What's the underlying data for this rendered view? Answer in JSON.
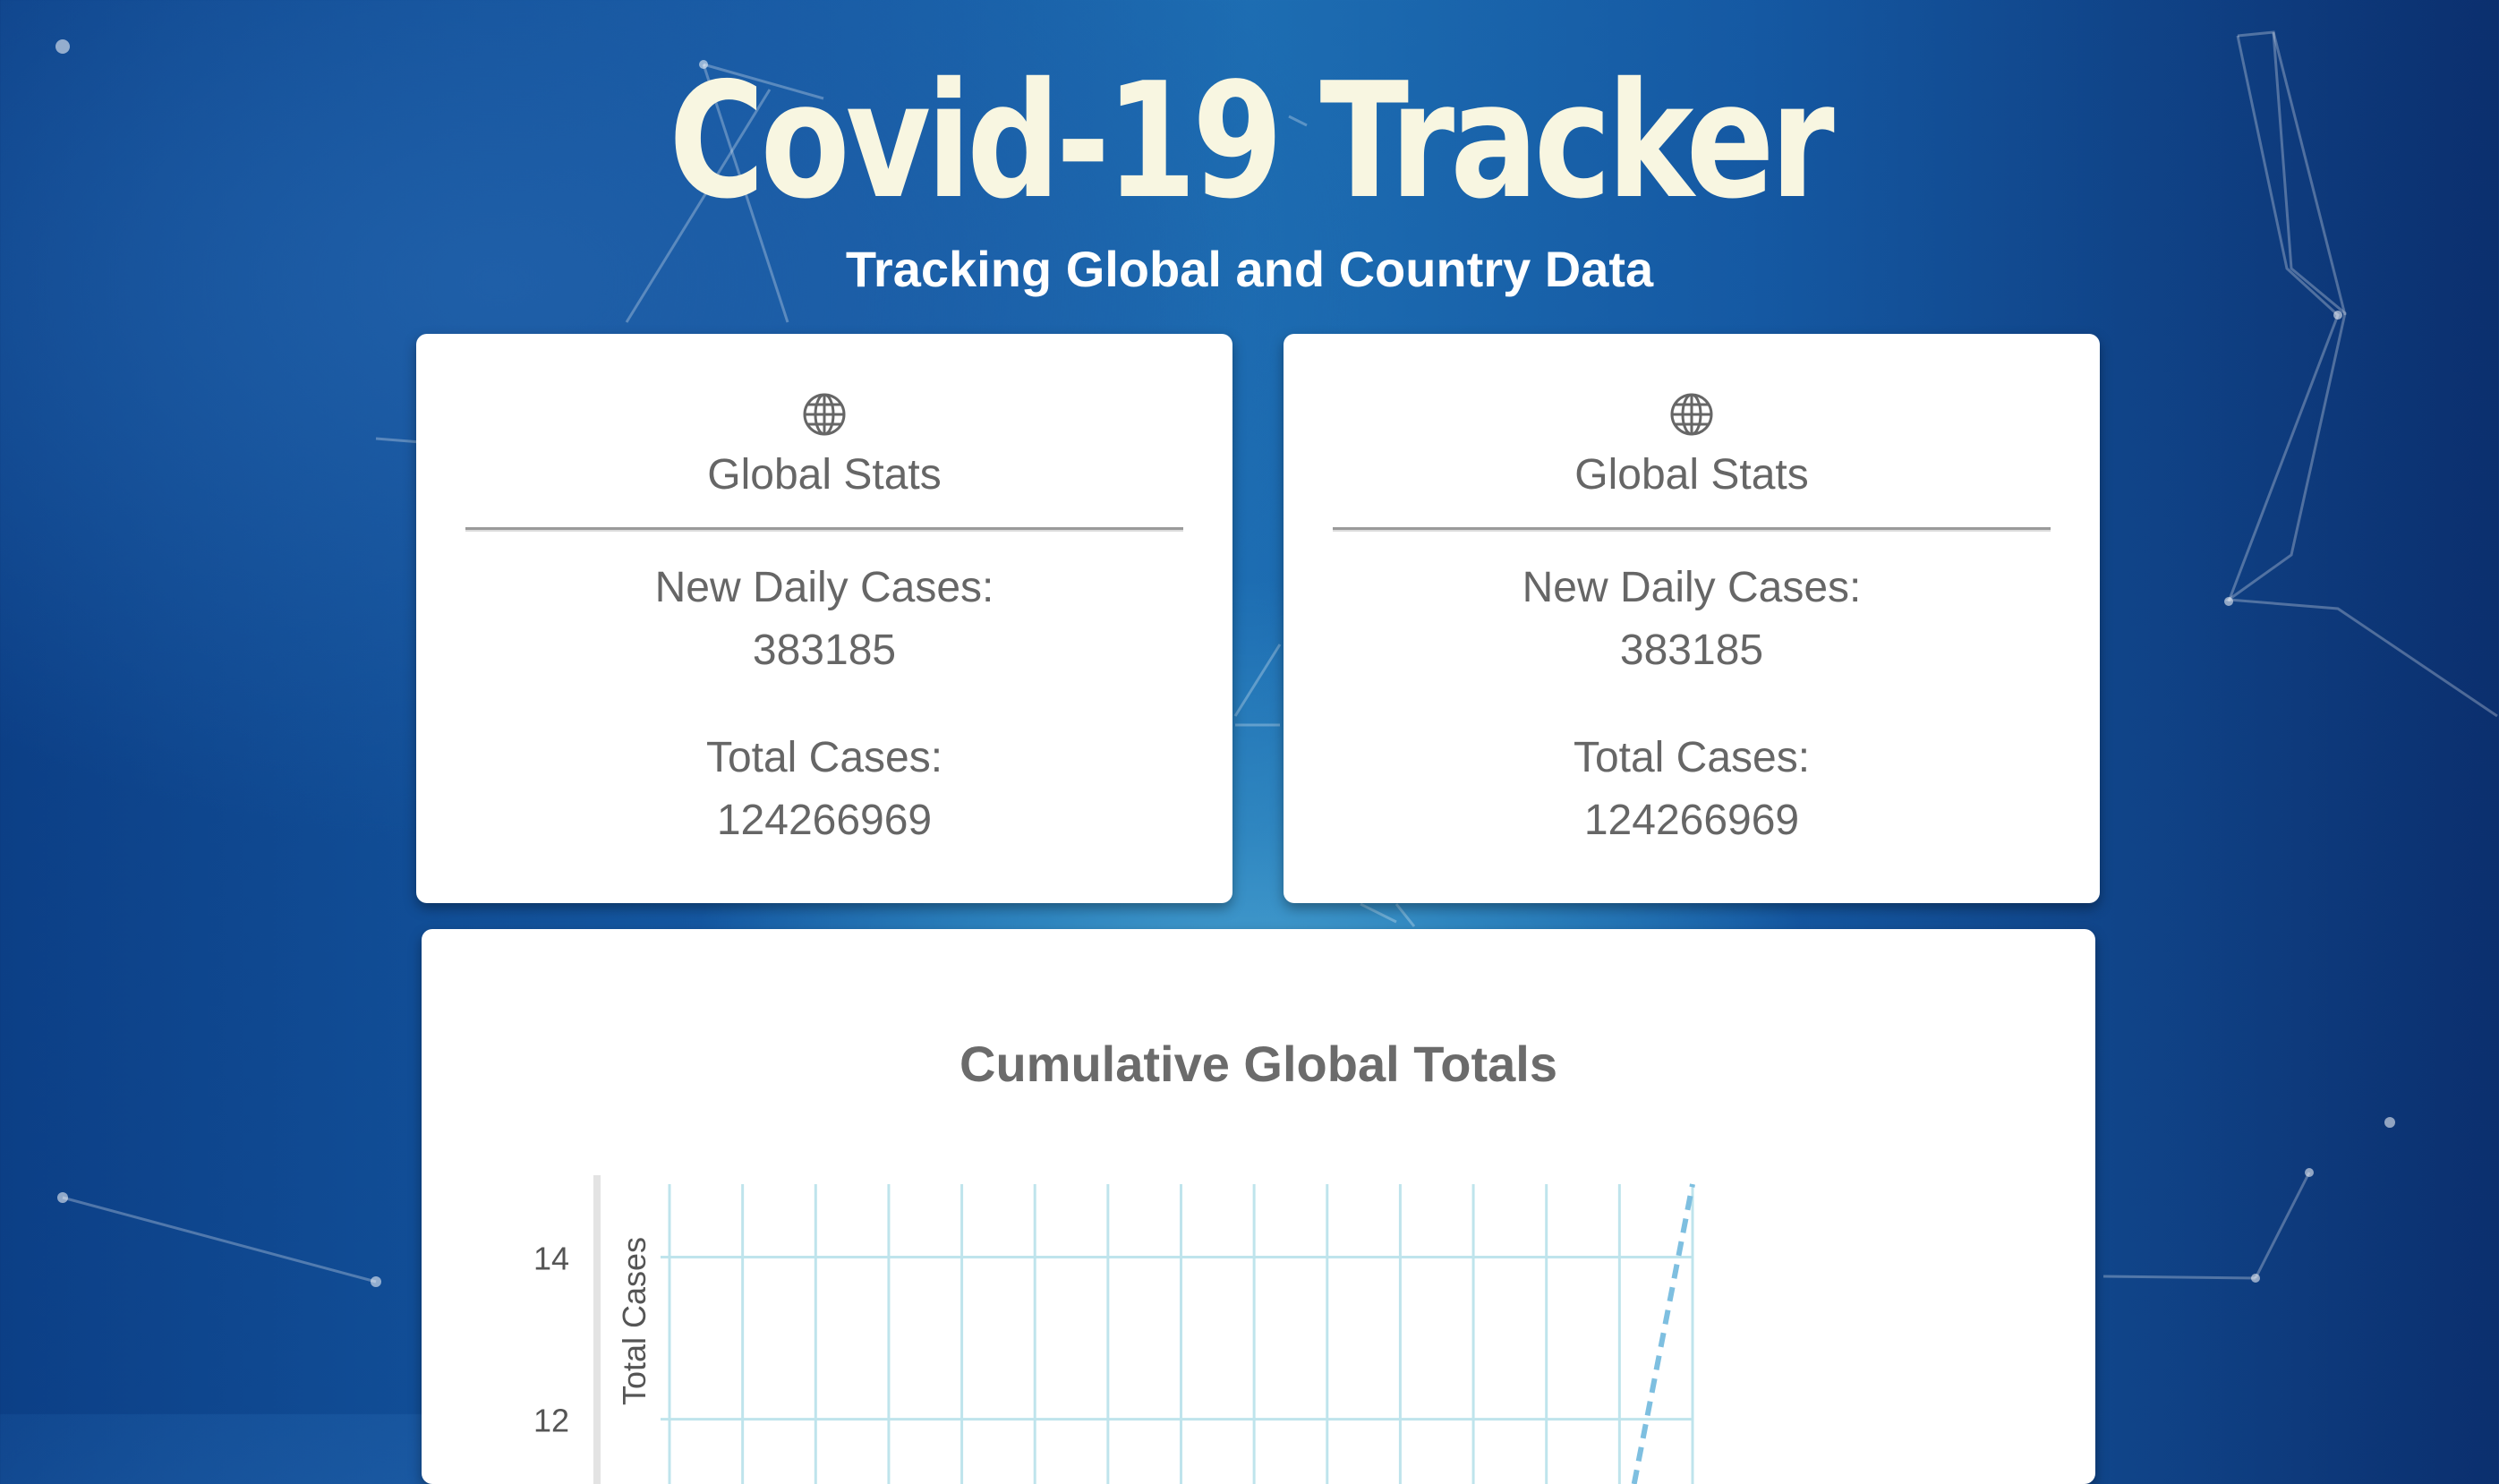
{
  "header": {
    "title": "Covid-19 Tracker",
    "subtitle": "Tracking Global and Country Data"
  },
  "cards": [
    {
      "icon": "globe-icon",
      "heading": "Global Stats",
      "new_daily_label": "New Daily Cases:",
      "new_daily_value": "383185",
      "total_label": "Total Cases:",
      "total_value": "124266969"
    },
    {
      "icon": "globe-icon",
      "heading": "Global Stats",
      "new_daily_label": "New Daily Cases:",
      "new_daily_value": "383185",
      "total_label": "Total Cases:",
      "total_value": "124266969"
    }
  ],
  "colors": {
    "title": "#f8f6e1",
    "grid": "#bfe4ec",
    "line": "#7ebfe0",
    "card_text": "#666666"
  },
  "chart_data": {
    "type": "line",
    "title": "Cumulative Global Totals",
    "ylabel": "Total Cases",
    "xlabel": "",
    "yticks": [
      14,
      12
    ],
    "ylim": [
      11.2,
      14.9
    ],
    "x_gridlines": 15,
    "grid": true,
    "series": [
      {
        "style": "dashed",
        "points": [
          [
            13.2,
            11.2
          ],
          [
            14,
            14.9
          ]
        ]
      }
    ]
  }
}
